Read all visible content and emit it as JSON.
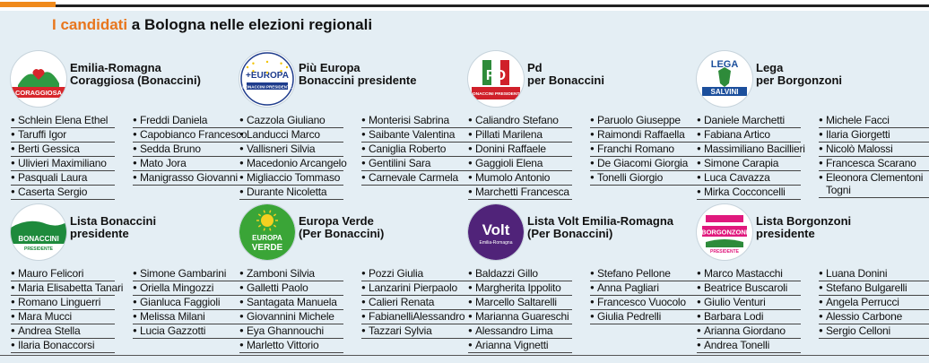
{
  "header": {
    "highlight": "I candidati",
    "rest": " a Bologna nelle elezioni regionali"
  },
  "parties": [
    {
      "name": "Emilia-Romagna\nCoraggiosa (Bonaccini)",
      "logo_text": "CORAGGIOSA",
      "logo_small": "EMILIA-ROMAGNA",
      "logo_colors": {
        "bg": "#ffffff",
        "band": "#d7262b",
        "accent": "#2e9a43"
      },
      "col1": [
        "Schlein Elena Ethel",
        "Taruffi Igor",
        "Berti Gessica",
        "Ulivieri Maximiliano",
        "Pasquali Laura",
        "Caserta Sergio"
      ],
      "col2": [
        "Freddi Daniela",
        "Capobianco Francesco",
        "Sedda Bruno",
        "Mato Jora",
        "Manigrasso Giovanni"
      ]
    },
    {
      "name": "Più Europa\nBonaccini presidente",
      "logo_text": "+EUROPA",
      "logo_small": "BONACCINI PRESIDENTE",
      "logo_colors": {
        "bg": "#ffffff",
        "band": "#1e3c8c",
        "accent": "#f2c400"
      },
      "col1": [
        "Cazzola Giuliano",
        "Landucci Marco",
        "Vallisneri Silvia",
        "Macedonio Arcangelo",
        "Migliaccio Tommaso",
        "Durante Nicoletta"
      ],
      "col2": [
        "Monterisi Sabrina",
        "Saibante Valentina",
        "Caniglia Roberto",
        "Gentilini Sara",
        "Carnevale Carmela"
      ]
    },
    {
      "name": "Pd\nper Bonaccini",
      "logo_text": "PD",
      "logo_small": "BONACCINI PRESIDENTE",
      "logo_colors": {
        "bg": "#ffffff",
        "band": "#d0202a",
        "accent": "#2e8b3a"
      },
      "col1": [
        "Caliandro Stefano",
        "Pillati Marilena",
        "Donini Raffaele",
        "Gaggioli Elena",
        "Mumolo Antonio",
        "Marchetti Francesca"
      ],
      "col2": [
        "Paruolo Giuseppe",
        "Raimondi Raffaella",
        "Franchi Romano",
        "De Giacomi Giorgia",
        "Tonelli Giorgio"
      ]
    },
    {
      "name": "Lega\nper Borgonzoni",
      "logo_text": "LEGA",
      "logo_small": "SALVINI",
      "logo_colors": {
        "bg": "#ffffff",
        "band": "#1c4f9c",
        "accent": "#2e8b3a"
      },
      "col1": [
        "Daniele Marchetti",
        "Fabiana Artico",
        "Massimiliano Bacillieri",
        "Simone Carapia",
        "Luca Cavazza",
        "Mirka Cocconcelli"
      ],
      "col2": [
        "Michele Facci",
        "Ilaria Giorgetti",
        "Nicolò Malossi",
        "Francesca Scarano",
        "Eleonora Clementoni Togni"
      ]
    },
    {
      "name": "Lista Bonaccini\npresidente",
      "logo_text": "BONACCINI",
      "logo_small": "PRESIDENTE",
      "logo_colors": {
        "bg": "#ffffff",
        "band": "#1e8a3c",
        "accent": "#1e8a3c"
      },
      "col1": [
        "Mauro Felicori",
        "Maria Elisabetta Tanari",
        "Romano Linguerri",
        "Mara Mucci",
        "Andrea Stella",
        "Ilaria Bonaccorsi"
      ],
      "col2": [
        "Simone Gambarini",
        "Oriella Mingozzi",
        "Gianluca Faggioli",
        "Melissa Milani",
        "Lucia Gazzotti"
      ]
    },
    {
      "name": "Europa Verde\n(Per Bonaccini)",
      "logo_text": "EUROPA VERDE",
      "logo_small": "",
      "logo_colors": {
        "bg": "#3aa537",
        "band": "#3aa537",
        "accent": "#f5d020"
      },
      "col1": [
        "Zamboni Silvia",
        "Galletti Paolo",
        "Santagata Manuela",
        "Giovannini Michele",
        "Eya Ghannouchi",
        "Marletto Vittorio"
      ],
      "col2": [
        "Pozzi Giulia",
        "Lanzarini Pierpaolo",
        "Calieri Renata",
        "FabianelliAlessandro",
        "Tazzari Sylvia"
      ]
    },
    {
      "name": "Lista Volt Emilia-Romagna\n(Per Bonaccini)",
      "logo_text": "Volt",
      "logo_small": "Emilia-Romagna",
      "logo_colors": {
        "bg": "#502379",
        "band": "#502379",
        "accent": "#ffffff"
      },
      "col1": [
        "Baldazzi Gillo",
        "Margherita Ippolito",
        "Marcello Saltarelli",
        "Marianna Guareschi",
        "Alessandro Lima",
        "Arianna Vignetti"
      ],
      "col2": [
        "Stefano Pellone",
        "Anna Pagliari",
        "Francesco Vuocolo",
        "Giulia Pedrelli"
      ]
    },
    {
      "name": "Lista Borgonzoni\npresidente",
      "logo_text": "BORGONZONI",
      "logo_small": "PRESIDENTE",
      "logo_colors": {
        "bg": "#ffffff",
        "band": "#e0197d",
        "accent": "#2e8b3a"
      },
      "col1": [
        "Marco Mastacchi",
        "Beatrice Buscaroli",
        "Giulio Venturi",
        "Barbara Lodi",
        "Arianna Giordano",
        "Andrea Tonelli"
      ],
      "col2": [
        "Luana Donini",
        "Stefano Bulgarelli",
        "Angela Perrucci",
        "Alessio Carbone",
        "Sergio Celloni"
      ]
    }
  ]
}
